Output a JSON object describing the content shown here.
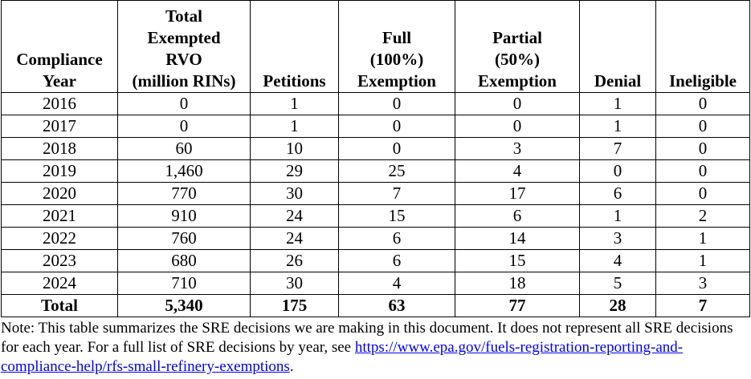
{
  "table": {
    "header": [
      [
        "Compliance",
        "Year"
      ],
      [
        "Total",
        "Exempted",
        "RVO",
        "(million RINs)"
      ],
      [
        "Petitions"
      ],
      [
        "Full",
        "(100%)",
        "Exemption"
      ],
      [
        "Partial",
        "(50%)",
        "Exemption"
      ],
      [
        "Denial"
      ],
      [
        "Ineligible"
      ]
    ],
    "rows": [
      [
        "2016",
        "0",
        "1",
        "0",
        "0",
        "1",
        "0"
      ],
      [
        "2017",
        "0",
        "1",
        "0",
        "0",
        "1",
        "0"
      ],
      [
        "2018",
        "60",
        "10",
        "0",
        "3",
        "7",
        "0"
      ],
      [
        "2019",
        "1,460",
        "29",
        "25",
        "4",
        "0",
        "0"
      ],
      [
        "2020",
        "770",
        "30",
        "7",
        "17",
        "6",
        "0"
      ],
      [
        "2021",
        "910",
        "24",
        "15",
        "6",
        "1",
        "2"
      ],
      [
        "2022",
        "760",
        "24",
        "6",
        "14",
        "3",
        "1"
      ],
      [
        "2023",
        "680",
        "26",
        "6",
        "15",
        "4",
        "1"
      ],
      [
        "2024",
        "710",
        "30",
        "4",
        "18",
        "5",
        "3"
      ]
    ],
    "total": [
      "Total",
      "5,340",
      "175",
      "63",
      "77",
      "28",
      "7"
    ]
  },
  "note": {
    "text": "Note: This table summarizes the SRE decisions we are making in this document. It does not represent all SRE decisions for each year. For a full list of SRE decisions by year, see ",
    "link": "https://www.epa.gov/fuels-registration-reporting-and-compliance-help/rfs-small-refinery-exemptions",
    "end": "."
  }
}
